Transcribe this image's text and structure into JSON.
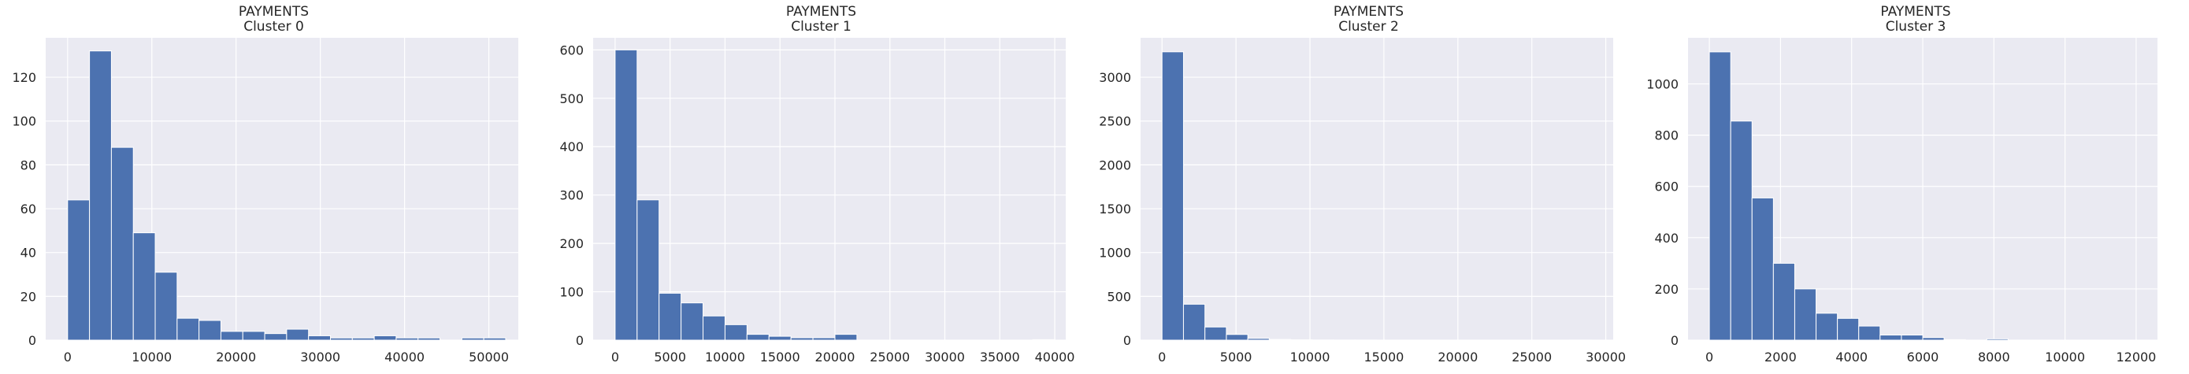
{
  "colors": {
    "plot_bg": "#EAEAF2",
    "bar": "#4C72B0",
    "grid": "#FFFFFF",
    "text": "#262626"
  },
  "chart_data": [
    {
      "type": "bar",
      "title_line1": "PAYMENTS",
      "title_line2": "Cluster 0",
      "xlim": [
        -2600,
        53500
      ],
      "ylim": [
        0,
        138
      ],
      "xticks": [
        0,
        10000,
        20000,
        30000,
        40000,
        50000
      ],
      "yticks": [
        0,
        20,
        40,
        60,
        80,
        100,
        120
      ],
      "bin_width": 2600,
      "bin_start": 0,
      "values": [
        64,
        132,
        88,
        49,
        31,
        10,
        9,
        4,
        4,
        3,
        5,
        2,
        1,
        1,
        2,
        1,
        1,
        0,
        1,
        1
      ],
      "grid": true
    },
    {
      "type": "bar",
      "title_line1": "PAYMENTS",
      "title_line2": "Cluster 1",
      "xlim": [
        -2000,
        41000
      ],
      "ylim": [
        0,
        625
      ],
      "xticks": [
        0,
        5000,
        10000,
        15000,
        20000,
        25000,
        30000,
        35000,
        40000
      ],
      "yticks": [
        0,
        100,
        200,
        300,
        400,
        500,
        600
      ],
      "bin_width": 2000,
      "bin_start": 0,
      "values": [
        600,
        290,
        97,
        77,
        50,
        32,
        12,
        8,
        5,
        5,
        12,
        0,
        0,
        0,
        0,
        0,
        0,
        0,
        0,
        1
      ],
      "grid": true
    },
    {
      "type": "bar",
      "title_line1": "PAYMENTS",
      "title_line2": "Cluster 2",
      "xlim": [
        -1450,
        30500
      ],
      "ylim": [
        0,
        3450
      ],
      "xticks": [
        0,
        5000,
        10000,
        15000,
        20000,
        25000,
        30000
      ],
      "yticks": [
        0,
        500,
        1000,
        1500,
        2000,
        2500,
        3000
      ],
      "bin_width": 1450,
      "bin_start": 0,
      "values": [
        3290,
        410,
        150,
        65,
        20,
        8,
        4,
        2,
        1,
        1,
        0,
        0,
        0,
        0,
        0,
        0,
        0,
        0,
        0,
        1
      ],
      "grid": true
    },
    {
      "type": "bar",
      "title_line1": "PAYMENTS",
      "title_line2": "Cluster 3",
      "xlim": [
        -600,
        12600
      ],
      "ylim": [
        0,
        1180
      ],
      "xticks": [
        0,
        2000,
        4000,
        6000,
        8000,
        10000,
        12000
      ],
      "yticks": [
        0,
        200,
        400,
        600,
        800,
        1000
      ],
      "bin_width": 600,
      "bin_start": 0,
      "values": [
        1125,
        855,
        555,
        300,
        200,
        105,
        85,
        55,
        20,
        20,
        10,
        2,
        0,
        5,
        0,
        0,
        0,
        0,
        0,
        0
      ],
      "grid": true
    }
  ]
}
